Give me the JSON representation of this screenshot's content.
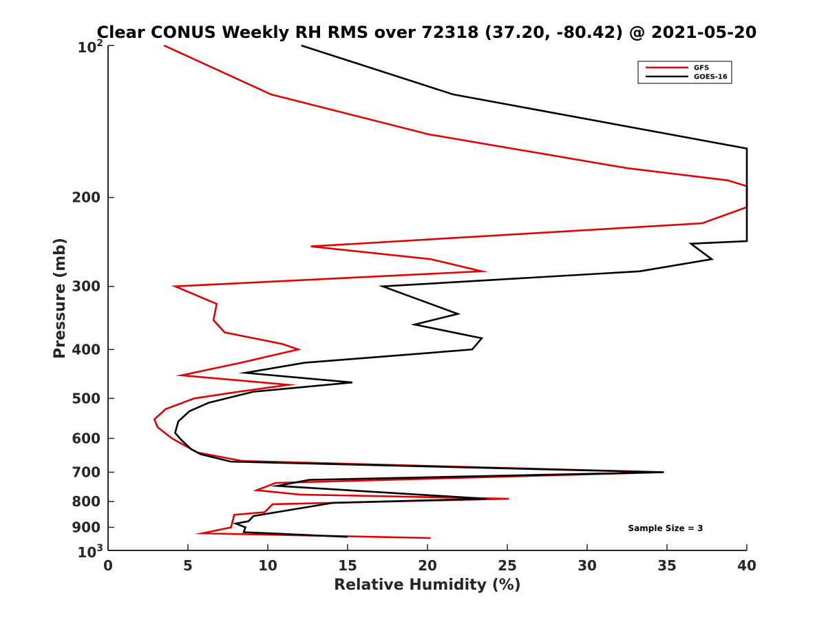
{
  "chart_data": {
    "type": "line",
    "title": "Clear CONUS Weekly RH RMS over 72318 (37.20, -80.42) @ 2021-05-20",
    "xlabel": "Relative Humidity (%)",
    "ylabel": "Pressure (mb)",
    "xlim": [
      0,
      40
    ],
    "ylim": [
      100,
      1000
    ],
    "y_scale": "log",
    "y_reversed": true,
    "grid": false,
    "legend_position": "top-right",
    "x_ticks": [
      "0",
      "5",
      "10",
      "15",
      "20",
      "25",
      "30",
      "35",
      "40"
    ],
    "y_ticks": [
      {
        "value": 100,
        "base": "10",
        "exp": "2"
      },
      {
        "value": 200,
        "label": "200"
      },
      {
        "value": 300,
        "label": "300"
      },
      {
        "value": 400,
        "label": "400"
      },
      {
        "value": 500,
        "label": "500"
      },
      {
        "value": 600,
        "label": "600"
      },
      {
        "value": 700,
        "label": "700"
      },
      {
        "value": 800,
        "label": "800"
      },
      {
        "value": 900,
        "label": "900"
      },
      {
        "value": 1000,
        "base": "10",
        "exp": "3"
      }
    ],
    "annotation": "Sample Size = 3",
    "series": [
      {
        "name": "GFS",
        "color": "#e00000",
        "points": [
          [
            3.5,
            100
          ],
          [
            10.2,
            125
          ],
          [
            20.1,
            150
          ],
          [
            32.5,
            175
          ],
          [
            38.8,
            185
          ],
          [
            40.0,
            190
          ],
          [
            40.0,
            209
          ],
          [
            37.2,
            225
          ],
          [
            12.7,
            250
          ],
          [
            20.2,
            265
          ],
          [
            23.4,
            280
          ],
          [
            4.2,
            300
          ],
          [
            6.8,
            325
          ],
          [
            6.6,
            350
          ],
          [
            7.3,
            370
          ],
          [
            10.9,
            390
          ],
          [
            11.9,
            400
          ],
          [
            8.3,
            425
          ],
          [
            4.6,
            450
          ],
          [
            11.3,
            470
          ],
          [
            8.2,
            485
          ],
          [
            5.4,
            500
          ],
          [
            3.6,
            525
          ],
          [
            2.9,
            550
          ],
          [
            3.1,
            570
          ],
          [
            4.0,
            600
          ],
          [
            5.6,
            640
          ],
          [
            8.4,
            665
          ],
          [
            34.8,
            700
          ],
          [
            10.5,
            735
          ],
          [
            9.3,
            760
          ],
          [
            12.0,
            775
          ],
          [
            25.1,
            790
          ],
          [
            10.3,
            810
          ],
          [
            9.8,
            840
          ],
          [
            7.9,
            850
          ],
          [
            7.7,
            900
          ],
          [
            5.9,
            925
          ],
          [
            20.2,
            945
          ]
        ]
      },
      {
        "name": "GOES-16",
        "color": "#000000",
        "points": [
          [
            12.1,
            100
          ],
          [
            21.6,
            125
          ],
          [
            40.0,
            160
          ],
          [
            40.0,
            244
          ],
          [
            36.5,
            247
          ],
          [
            37.8,
            265
          ],
          [
            33.3,
            280
          ],
          [
            17.2,
            300
          ],
          [
            20.2,
            325
          ],
          [
            21.9,
            340
          ],
          [
            19.2,
            357
          ],
          [
            23.4,
            380
          ],
          [
            22.8,
            400
          ],
          [
            12.3,
            425
          ],
          [
            8.6,
            445
          ],
          [
            15.3,
            465
          ],
          [
            9.1,
            485
          ],
          [
            6.3,
            510
          ],
          [
            5.1,
            530
          ],
          [
            4.4,
            555
          ],
          [
            4.2,
            585
          ],
          [
            4.6,
            605
          ],
          [
            5.2,
            630
          ],
          [
            5.8,
            645
          ],
          [
            7.7,
            667
          ],
          [
            34.8,
            700
          ],
          [
            12.6,
            725
          ],
          [
            10.6,
            745
          ],
          [
            23.7,
            790
          ],
          [
            14.1,
            805
          ],
          [
            9.1,
            855
          ],
          [
            8.8,
            875
          ],
          [
            8.0,
            885
          ],
          [
            8.6,
            900
          ],
          [
            8.5,
            920
          ],
          [
            15.0,
            940
          ]
        ]
      }
    ]
  }
}
